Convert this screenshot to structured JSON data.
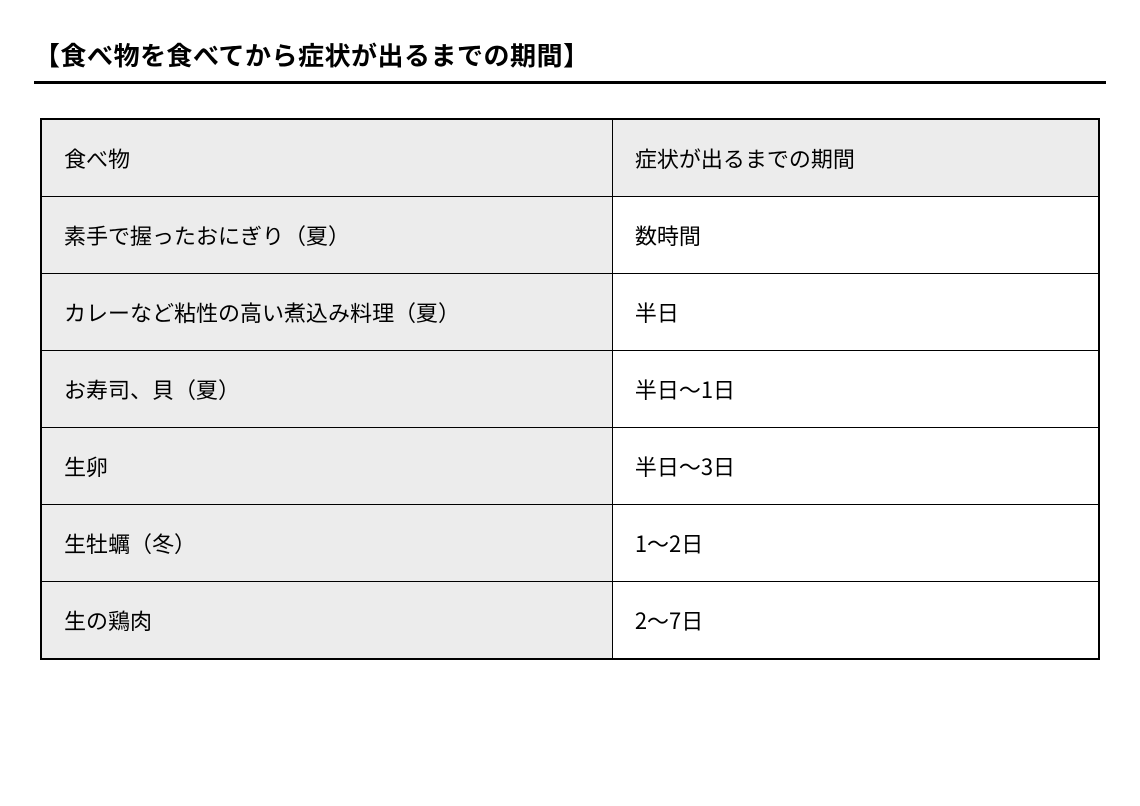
{
  "title": "【食べ物を食べてから症状が出るまでの期間】",
  "table": {
    "type": "table",
    "header_bg": "#ececec",
    "food_col_bg": "#ececec",
    "period_col_bg": "#ffffff",
    "border_color": "#000000",
    "columns": [
      "食べ物",
      "症状が出るまでの期間"
    ],
    "rows": [
      [
        "素手で握ったおにぎり（夏）",
        "数時間"
      ],
      [
        "カレーなど粘性の高い煮込み料理（夏）",
        "半日"
      ],
      [
        "お寿司、貝（夏）",
        "半日〜1日"
      ],
      [
        "生卵",
        "半日〜3日"
      ],
      [
        "生牡蠣（冬）",
        "1〜2日"
      ],
      [
        "生の鶏肉",
        "2〜7日"
      ]
    ]
  }
}
